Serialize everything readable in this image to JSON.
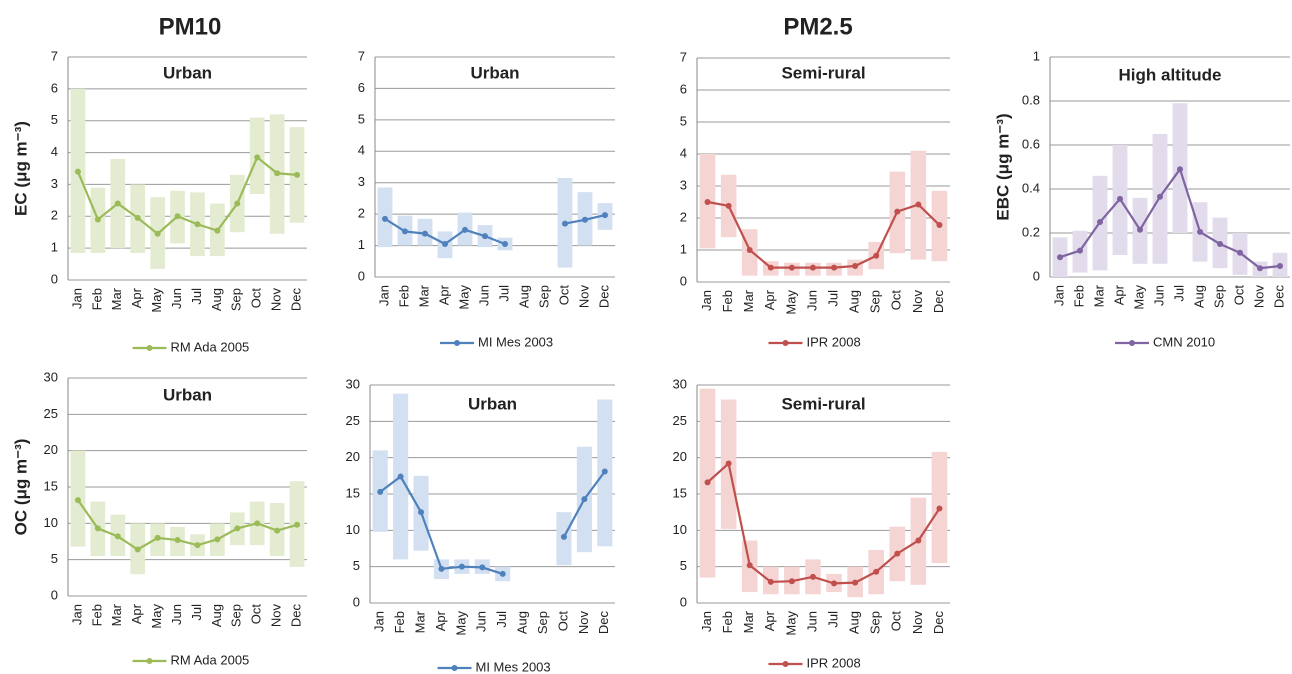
{
  "headings": [
    "PM10",
    "PM2.5"
  ],
  "chart_data": [
    {
      "type": "line",
      "title": "Urban",
      "y_label": "EC (μg m⁻³)",
      "categories": [
        "Jan",
        "Feb",
        "Mar",
        "Apr",
        "May",
        "Jun",
        "Jul",
        "Aug",
        "Sep",
        "Oct",
        "Nov",
        "Dec"
      ],
      "series": [
        {
          "name": "RM Ada 2005",
          "color": "#9bbb59",
          "values": [
            3.4,
            1.9,
            2.4,
            1.95,
            1.45,
            2.0,
            1.75,
            1.55,
            2.4,
            3.85,
            3.35,
            3.3
          ]
        }
      ],
      "range": {
        "color": "#e3ecd1",
        "low": [
          0.85,
          0.85,
          1.0,
          0.85,
          0.35,
          1.15,
          0.75,
          0.75,
          1.5,
          2.7,
          1.45,
          1.8
        ],
        "high": [
          6.0,
          2.9,
          3.8,
          3.0,
          2.6,
          2.8,
          2.75,
          2.4,
          3.3,
          5.1,
          5.2,
          4.8
        ]
      },
      "ylim": [
        0,
        7
      ],
      "yticks": [
        0,
        1,
        2,
        3,
        4,
        5,
        6,
        7
      ],
      "grid": true
    },
    {
      "type": "line",
      "title": "Urban",
      "categories": [
        "Jan",
        "Feb",
        "Mar",
        "Apr",
        "May",
        "Jun",
        "Jul",
        "Aug",
        "Sep",
        "Oct",
        "Nov",
        "Dec"
      ],
      "series": [
        {
          "name": "MI Mes 2003",
          "color": "#4f81bd",
          "values": [
            1.85,
            1.45,
            1.38,
            1.05,
            1.5,
            1.3,
            1.05,
            null,
            null,
            1.7,
            1.82,
            1.97
          ]
        }
      ],
      "range": {
        "color": "#d3e0f1",
        "low": [
          0.95,
          1.0,
          1.0,
          0.6,
          1.0,
          0.95,
          0.85,
          null,
          null,
          0.3,
          1.0,
          1.5
        ],
        "high": [
          2.85,
          1.95,
          1.85,
          1.45,
          2.05,
          1.65,
          1.25,
          null,
          null,
          3.15,
          2.7,
          2.35
        ]
      },
      "ylim": [
        0,
        7
      ],
      "yticks": [
        0,
        1,
        2,
        3,
        4,
        5,
        6,
        7
      ],
      "grid": true
    },
    {
      "type": "line",
      "title": "Semi-rural",
      "categories": [
        "Jan",
        "Feb",
        "Mar",
        "Apr",
        "May",
        "Jun",
        "Jul",
        "Aug",
        "Sep",
        "Oct",
        "Nov",
        "Dec"
      ],
      "series": [
        {
          "name": "IPR 2008",
          "color": "#c0504d",
          "values": [
            2.5,
            2.38,
            1.0,
            0.45,
            0.45,
            0.45,
            0.45,
            0.5,
            0.82,
            2.2,
            2.42,
            1.78
          ]
        }
      ],
      "range": {
        "color": "#f4d5d4",
        "low": [
          1.05,
          1.4,
          0.2,
          0.2,
          0.2,
          0.2,
          0.2,
          0.2,
          0.4,
          0.9,
          0.7,
          0.65
        ],
        "high": [
          4.0,
          3.35,
          1.65,
          0.65,
          0.6,
          0.6,
          0.6,
          0.7,
          1.25,
          3.45,
          4.1,
          2.85
        ]
      },
      "ylim": [
        0,
        7
      ],
      "yticks": [
        0,
        1,
        2,
        3,
        4,
        5,
        6,
        7
      ],
      "grid": true
    },
    {
      "type": "line",
      "title": "High altitude",
      "y_label": "EBC (μg m⁻³)",
      "categories": [
        "Jan",
        "Feb",
        "Mar",
        "Apr",
        "May",
        "Jun",
        "Jul",
        "Aug",
        "Sep",
        "Oct",
        "Nov",
        "Dec"
      ],
      "series": [
        {
          "name": "CMN 2010",
          "color": "#8064a2",
          "values": [
            0.09,
            0.12,
            0.25,
            0.355,
            0.215,
            0.365,
            0.49,
            0.205,
            0.15,
            0.11,
            0.04,
            0.05
          ]
        }
      ],
      "range": {
        "color": "#e1dbeb",
        "low": [
          0.0,
          0.02,
          0.03,
          0.1,
          0.06,
          0.06,
          0.2,
          0.07,
          0.04,
          0.01,
          0.0,
          0.0
        ],
        "high": [
          0.18,
          0.21,
          0.46,
          0.6,
          0.36,
          0.65,
          0.79,
          0.34,
          0.27,
          0.2,
          0.07,
          0.11
        ]
      },
      "ylim": [
        0,
        1
      ],
      "yticks": [
        0,
        0.2,
        0.4,
        0.6,
        0.8,
        1
      ],
      "grid": true
    },
    {
      "type": "line",
      "title": "Urban",
      "y_label": "OC (μg m⁻³)",
      "categories": [
        "Jan",
        "Feb",
        "Mar",
        "Apr",
        "May",
        "Jun",
        "Jul",
        "Aug",
        "Sep",
        "Oct",
        "Nov",
        "Dec"
      ],
      "series": [
        {
          "name": "RM Ada 2005",
          "color": "#9bbb59",
          "values": [
            13.2,
            9.3,
            8.2,
            6.4,
            8.0,
            7.7,
            7.0,
            7.8,
            9.3,
            10.0,
            9.0,
            9.8
          ]
        }
      ],
      "range": {
        "color": "#e3ecd1",
        "low": [
          6.8,
          5.5,
          5.5,
          3.0,
          5.5,
          5.5,
          5.5,
          5.5,
          7.0,
          7.0,
          5.5,
          4.0
        ],
        "high": [
          20.0,
          13.0,
          11.2,
          10.0,
          10.0,
          9.5,
          8.5,
          10.0,
          11.5,
          13.0,
          12.8,
          15.8
        ]
      },
      "ylim": [
        0,
        30
      ],
      "yticks": [
        0,
        5,
        10,
        15,
        20,
        25,
        30
      ],
      "grid": true
    },
    {
      "type": "line",
      "title": "Urban",
      "categories": [
        "Jan",
        "Feb",
        "Mar",
        "Apr",
        "May",
        "Jun",
        "Jul",
        "Aug",
        "Sep",
        "Oct",
        "Nov",
        "Dec"
      ],
      "series": [
        {
          "name": "MI Mes 2003",
          "color": "#4f81bd",
          "values": [
            15.3,
            17.4,
            12.5,
            4.7,
            5.0,
            4.9,
            4.0,
            null,
            null,
            9.1,
            14.3,
            18.1
          ]
        }
      ],
      "range": {
        "color": "#d3e0f1",
        "low": [
          9.8,
          6.0,
          7.2,
          3.3,
          4.0,
          4.0,
          3.0,
          null,
          null,
          5.2,
          7.0,
          7.8
        ],
        "high": [
          21.0,
          28.8,
          17.5,
          6.0,
          6.0,
          6.0,
          5.0,
          null,
          null,
          12.5,
          21.5,
          28.0
        ]
      },
      "ylim": [
        0,
        30
      ],
      "yticks": [
        0,
        5,
        10,
        15,
        20,
        25,
        30
      ],
      "grid": true
    },
    {
      "type": "line",
      "title": "Semi-rural",
      "categories": [
        "Jan",
        "Feb",
        "Mar",
        "Apr",
        "May",
        "Jun",
        "Jul",
        "Aug",
        "Sep",
        "Oct",
        "Nov",
        "Dec"
      ],
      "series": [
        {
          "name": "IPR 2008",
          "color": "#c0504d",
          "values": [
            16.6,
            19.2,
            5.2,
            2.9,
            3.0,
            3.6,
            2.7,
            2.8,
            4.3,
            6.8,
            8.6,
            13.0
          ]
        }
      ],
      "range": {
        "color": "#f4d5d4",
        "low": [
          3.5,
          10.2,
          1.5,
          1.2,
          1.2,
          1.2,
          1.5,
          0.8,
          1.2,
          3.0,
          2.5,
          5.5
        ],
        "high": [
          29.5,
          28.0,
          8.6,
          5.0,
          5.0,
          6.0,
          4.0,
          5.0,
          7.3,
          10.5,
          14.5,
          20.8
        ]
      },
      "ylim": [
        0,
        30
      ],
      "yticks": [
        0,
        5,
        10,
        15,
        20,
        25,
        30
      ],
      "grid": true
    }
  ]
}
